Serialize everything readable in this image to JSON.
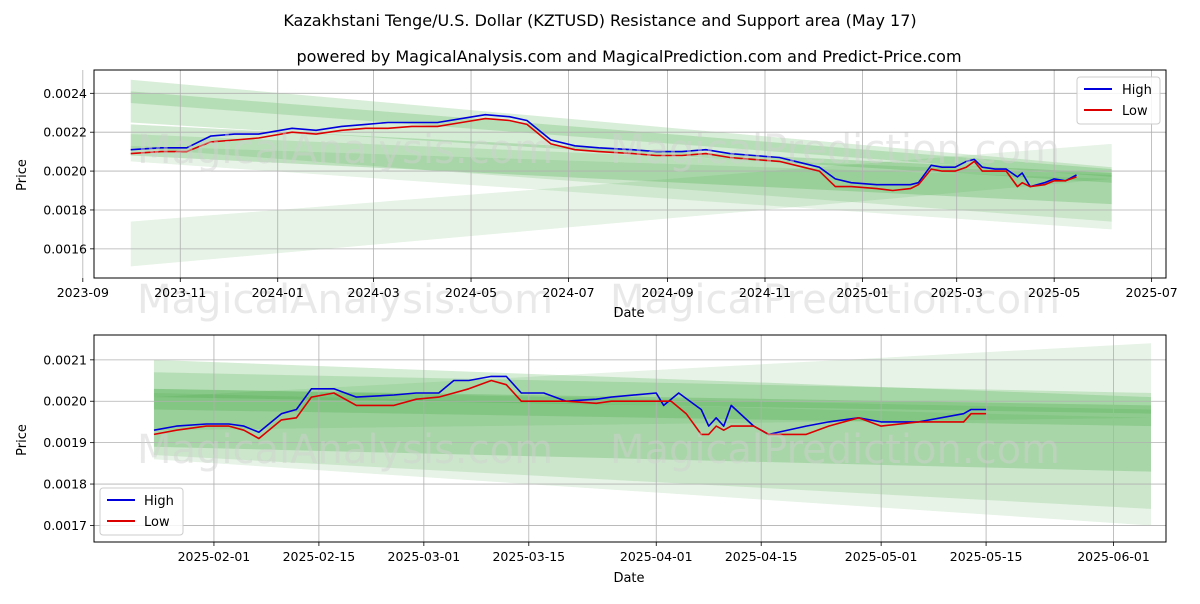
{
  "title": "Kazakhstani Tenge/U.S. Dollar (KZTUSD) Resistance and Support area (May 17)",
  "subtitle": "powered by MagicalAnalysis.com and MagicalPrediction.com and Predict-Price.com",
  "watermarks": [
    "MagicalAnalysis.com",
    "MagicalPrediction.com"
  ],
  "colors": {
    "high": "#0000dd",
    "low": "#dd0000",
    "band": "#2e9e2e",
    "grid": "#b0b0b0"
  },
  "chart_data": [
    {
      "type": "line",
      "xlabel": "Date",
      "ylabel": "Price",
      "xlim": [
        "2023-09-08",
        "2025-07-10"
      ],
      "ylim": [
        0.00145,
        0.00252
      ],
      "x_ticks": [
        "2023-09",
        "2023-11",
        "2024-01",
        "2024-03",
        "2024-05",
        "2024-07",
        "2024-09",
        "2024-11",
        "2025-01",
        "2025-03",
        "2025-05",
        "2025-07"
      ],
      "y_ticks": [
        "0.0016",
        "0.0018",
        "0.0020",
        "0.0022",
        "0.0024"
      ],
      "grid": true,
      "legend": "top-right",
      "series": [
        {
          "name": "High",
          "points": [
            [
              "2023-10-01",
              0.00211
            ],
            [
              "2023-10-20",
              0.00212
            ],
            [
              "2023-11-05",
              0.00212
            ],
            [
              "2023-11-20",
              0.00218
            ],
            [
              "2023-12-05",
              0.00219
            ],
            [
              "2023-12-20",
              0.00219
            ],
            [
              "2024-01-10",
              0.00222
            ],
            [
              "2024-01-25",
              0.00221
            ],
            [
              "2024-02-10",
              0.00223
            ],
            [
              "2024-02-25",
              0.00224
            ],
            [
              "2024-03-10",
              0.00225
            ],
            [
              "2024-03-25",
              0.00225
            ],
            [
              "2024-04-10",
              0.00225
            ],
            [
              "2024-04-25",
              0.00227
            ],
            [
              "2024-05-10",
              0.00229
            ],
            [
              "2024-05-25",
              0.00228
            ],
            [
              "2024-06-05",
              0.00226
            ],
            [
              "2024-06-20",
              0.00216
            ],
            [
              "2024-07-05",
              0.00213
            ],
            [
              "2024-07-20",
              0.00212
            ],
            [
              "2024-08-10",
              0.00211
            ],
            [
              "2024-08-25",
              0.0021
            ],
            [
              "2024-09-10",
              0.0021
            ],
            [
              "2024-09-25",
              0.00211
            ],
            [
              "2024-10-10",
              0.00209
            ],
            [
              "2024-10-25",
              0.00208
            ],
            [
              "2024-11-10",
              0.00207
            ],
            [
              "2024-11-25",
              0.00204
            ],
            [
              "2024-12-05",
              0.00202
            ],
            [
              "2024-12-15",
              0.00196
            ],
            [
              "2024-12-25",
              0.00194
            ],
            [
              "2025-01-10",
              0.00193
            ],
            [
              "2025-01-20",
              0.00193
            ],
            [
              "2025-01-31",
              0.00193
            ],
            [
              "2025-02-05",
              0.00194
            ],
            [
              "2025-02-13",
              0.00203
            ],
            [
              "2025-02-20",
              0.00202
            ],
            [
              "2025-02-28",
              0.00202
            ],
            [
              "2025-03-07",
              0.00205
            ],
            [
              "2025-03-12",
              0.00206
            ],
            [
              "2025-03-17",
              0.00202
            ],
            [
              "2025-03-25",
              0.00201
            ],
            [
              "2025-04-01",
              0.00201
            ],
            [
              "2025-04-08",
              0.00197
            ],
            [
              "2025-04-11",
              0.00199
            ],
            [
              "2025-04-16",
              0.00192
            ],
            [
              "2025-04-25",
              0.00194
            ],
            [
              "2025-05-01",
              0.00196
            ],
            [
              "2025-05-08",
              0.00195
            ],
            [
              "2025-05-15",
              0.00198
            ]
          ]
        },
        {
          "name": "Low",
          "points": [
            [
              "2023-10-01",
              0.00209
            ],
            [
              "2023-10-20",
              0.0021
            ],
            [
              "2023-11-05",
              0.0021
            ],
            [
              "2023-11-20",
              0.00215
            ],
            [
              "2023-12-05",
              0.00216
            ],
            [
              "2023-12-20",
              0.00217
            ],
            [
              "2024-01-10",
              0.0022
            ],
            [
              "2024-01-25",
              0.00219
            ],
            [
              "2024-02-10",
              0.00221
            ],
            [
              "2024-02-25",
              0.00222
            ],
            [
              "2024-03-10",
              0.00222
            ],
            [
              "2024-03-25",
              0.00223
            ],
            [
              "2024-04-10",
              0.00223
            ],
            [
              "2024-04-25",
              0.00225
            ],
            [
              "2024-05-10",
              0.00227
            ],
            [
              "2024-05-25",
              0.00226
            ],
            [
              "2024-06-05",
              0.00224
            ],
            [
              "2024-06-20",
              0.00214
            ],
            [
              "2024-07-05",
              0.00211
            ],
            [
              "2024-07-20",
              0.0021
            ],
            [
              "2024-08-10",
              0.00209
            ],
            [
              "2024-08-25",
              0.00208
            ],
            [
              "2024-09-10",
              0.00208
            ],
            [
              "2024-09-25",
              0.00209
            ],
            [
              "2024-10-10",
              0.00207
            ],
            [
              "2024-10-25",
              0.00206
            ],
            [
              "2024-11-10",
              0.00205
            ],
            [
              "2024-11-25",
              0.00202
            ],
            [
              "2024-12-05",
              0.002
            ],
            [
              "2024-12-15",
              0.00192
            ],
            [
              "2024-12-25",
              0.00192
            ],
            [
              "2025-01-10",
              0.00191
            ],
            [
              "2025-01-20",
              0.0019
            ],
            [
              "2025-01-31",
              0.00191
            ],
            [
              "2025-02-05",
              0.00193
            ],
            [
              "2025-02-13",
              0.00201
            ],
            [
              "2025-02-20",
              0.002
            ],
            [
              "2025-02-28",
              0.002
            ],
            [
              "2025-03-07",
              0.00202
            ],
            [
              "2025-03-12",
              0.00205
            ],
            [
              "2025-03-17",
              0.002
            ],
            [
              "2025-03-25",
              0.002
            ],
            [
              "2025-04-01",
              0.002
            ],
            [
              "2025-04-08",
              0.00192
            ],
            [
              "2025-04-11",
              0.00194
            ],
            [
              "2025-04-16",
              0.00192
            ],
            [
              "2025-04-25",
              0.00193
            ],
            [
              "2025-05-01",
              0.00195
            ],
            [
              "2025-05-08",
              0.00195
            ],
            [
              "2025-05-15",
              0.00197
            ]
          ]
        }
      ],
      "bands": [
        {
          "x": [
            "2023-10-01",
            "2025-06-06"
          ],
          "upper": [
            0.00247,
            0.00202
          ],
          "lower": [
            0.00235,
            0.00197
          ],
          "opacity": 0.18
        },
        {
          "x": [
            "2023-10-01",
            "2025-06-06"
          ],
          "upper": [
            0.00241,
            0.00201
          ],
          "lower": [
            0.00225,
            0.00194
          ],
          "opacity": 0.2
        },
        {
          "x": [
            "2023-10-01",
            "2025-06-06"
          ],
          "upper": [
            0.00224,
            0.00199
          ],
          "lower": [
            0.00208,
            0.00183
          ],
          "opacity": 0.22
        },
        {
          "x": [
            "2023-10-01",
            "2025-06-06"
          ],
          "upper": [
            0.00219,
            0.00198
          ],
          "lower": [
            0.00212,
            0.00174
          ],
          "opacity": 0.14
        },
        {
          "x": [
            "2023-10-01",
            "2025-06-06"
          ],
          "upper": [
            0.00213,
            0.00196
          ],
          "lower": [
            0.00205,
            0.0017
          ],
          "opacity": 0.12
        },
        {
          "x": [
            "2023-10-01",
            "2025-06-06"
          ],
          "upper": [
            0.00174,
            0.00214
          ],
          "lower": [
            0.00151,
            0.00196
          ],
          "opacity": 0.12
        }
      ]
    },
    {
      "type": "line",
      "xlabel": "Date",
      "ylabel": "Price",
      "xlim": [
        "2025-01-16",
        "2025-06-08"
      ],
      "ylim": [
        0.00166,
        0.00216
      ],
      "x_ticks": [
        "2025-02-01",
        "2025-02-15",
        "2025-03-01",
        "2025-03-15",
        "2025-04-01",
        "2025-04-15",
        "2025-05-01",
        "2025-05-15",
        "2025-06-01"
      ],
      "y_ticks": [
        "0.0017",
        "0.0018",
        "0.0019",
        "0.0020",
        "0.0021"
      ],
      "grid": true,
      "legend": "bottom-left",
      "series": [
        {
          "name": "High",
          "points": [
            [
              "2025-01-24",
              0.00193
            ],
            [
              "2025-01-27",
              0.00194
            ],
            [
              "2025-01-31",
              0.001945
            ],
            [
              "2025-02-03",
              0.001945
            ],
            [
              "2025-02-05",
              0.00194
            ],
            [
              "2025-02-07",
              0.001925
            ],
            [
              "2025-02-10",
              0.00197
            ],
            [
              "2025-02-12",
              0.00198
            ],
            [
              "2025-02-14",
              0.00203
            ],
            [
              "2025-02-17",
              0.00203
            ],
            [
              "2025-02-20",
              0.00201
            ],
            [
              "2025-02-25",
              0.002015
            ],
            [
              "2025-02-28",
              0.00202
            ],
            [
              "2025-03-03",
              0.00202
            ],
            [
              "2025-03-05",
              0.00205
            ],
            [
              "2025-03-07",
              0.00205
            ],
            [
              "2025-03-10",
              0.00206
            ],
            [
              "2025-03-12",
              0.00206
            ],
            [
              "2025-03-14",
              0.00202
            ],
            [
              "2025-03-17",
              0.00202
            ],
            [
              "2025-03-20",
              0.002
            ],
            [
              "2025-03-24",
              0.002005
            ],
            [
              "2025-03-26",
              0.00201
            ],
            [
              "2025-04-01",
              0.00202
            ],
            [
              "2025-04-02",
              0.00199
            ],
            [
              "2025-04-04",
              0.00202
            ],
            [
              "2025-04-07",
              0.00198
            ],
            [
              "2025-04-08",
              0.00194
            ],
            [
              "2025-04-09",
              0.00196
            ],
            [
              "2025-04-10",
              0.00194
            ],
            [
              "2025-04-11",
              0.00199
            ],
            [
              "2025-04-14",
              0.00194
            ],
            [
              "2025-04-16",
              0.00192
            ],
            [
              "2025-04-21",
              0.00194
            ],
            [
              "2025-04-24",
              0.00195
            ],
            [
              "2025-04-28",
              0.00196
            ],
            [
              "2025-05-01",
              0.00195
            ],
            [
              "2025-05-06",
              0.00195
            ],
            [
              "2025-05-12",
              0.00197
            ],
            [
              "2025-05-13",
              0.00198
            ],
            [
              "2025-05-15",
              0.00198
            ]
          ]
        },
        {
          "name": "Low",
          "points": [
            [
              "2025-01-24",
              0.00192
            ],
            [
              "2025-01-27",
              0.00193
            ],
            [
              "2025-01-31",
              0.00194
            ],
            [
              "2025-02-03",
              0.00194
            ],
            [
              "2025-02-05",
              0.00193
            ],
            [
              "2025-02-07",
              0.00191
            ],
            [
              "2025-02-10",
              0.001955
            ],
            [
              "2025-02-12",
              0.00196
            ],
            [
              "2025-02-14",
              0.00201
            ],
            [
              "2025-02-17",
              0.00202
            ],
            [
              "2025-02-20",
              0.00199
            ],
            [
              "2025-02-25",
              0.00199
            ],
            [
              "2025-02-28",
              0.002005
            ],
            [
              "2025-03-03",
              0.00201
            ],
            [
              "2025-03-05",
              0.00202
            ],
            [
              "2025-03-07",
              0.00203
            ],
            [
              "2025-03-10",
              0.00205
            ],
            [
              "2025-03-12",
              0.00204
            ],
            [
              "2025-03-14",
              0.002
            ],
            [
              "2025-03-17",
              0.002
            ],
            [
              "2025-03-20",
              0.002
            ],
            [
              "2025-03-24",
              0.001995
            ],
            [
              "2025-03-26",
              0.002
            ],
            [
              "2025-04-01",
              0.002
            ],
            [
              "2025-04-03",
              0.002
            ],
            [
              "2025-04-05",
              0.00197
            ],
            [
              "2025-04-07",
              0.00192
            ],
            [
              "2025-04-08",
              0.00192
            ],
            [
              "2025-04-09",
              0.00194
            ],
            [
              "2025-04-10",
              0.00193
            ],
            [
              "2025-04-11",
              0.00194
            ],
            [
              "2025-04-14",
              0.00194
            ],
            [
              "2025-04-16",
              0.00192
            ],
            [
              "2025-04-21",
              0.00192
            ],
            [
              "2025-04-24",
              0.00194
            ],
            [
              "2025-04-28",
              0.00196
            ],
            [
              "2025-05-01",
              0.00194
            ],
            [
              "2025-05-06",
              0.00195
            ],
            [
              "2025-05-12",
              0.00195
            ],
            [
              "2025-05-13",
              0.00197
            ],
            [
              "2025-05-15",
              0.00197
            ]
          ]
        }
      ],
      "bands": [
        {
          "x": [
            "2025-01-24",
            "2025-06-06"
          ],
          "upper": [
            0.00207,
            0.00202
          ],
          "lower": [
            0.00201,
            0.00197
          ],
          "opacity": 0.18
        },
        {
          "x": [
            "2025-01-24",
            "2025-06-06"
          ],
          "upper": [
            0.0021,
            0.00201
          ],
          "lower": [
            0.00198,
            0.00194
          ],
          "opacity": 0.2
        },
        {
          "x": [
            "2025-01-24",
            "2025-06-06"
          ],
          "upper": [
            0.00203,
            0.00199
          ],
          "lower": [
            0.00189,
            0.00183
          ],
          "opacity": 0.22
        },
        {
          "x": [
            "2025-01-24",
            "2025-06-06"
          ],
          "upper": [
            0.00203,
            0.00198
          ],
          "lower": [
            0.00187,
            0.00174
          ],
          "opacity": 0.14
        },
        {
          "x": [
            "2025-01-24",
            "2025-06-06"
          ],
          "upper": [
            0.00202,
            0.00196
          ],
          "lower": [
            0.00186,
            0.0017
          ],
          "opacity": 0.12
        },
        {
          "x": [
            "2025-01-24",
            "2025-06-06"
          ],
          "upper": [
            0.00201,
            0.00214
          ],
          "lower": [
            0.00193,
            0.00196
          ],
          "opacity": 0.12
        }
      ]
    }
  ]
}
